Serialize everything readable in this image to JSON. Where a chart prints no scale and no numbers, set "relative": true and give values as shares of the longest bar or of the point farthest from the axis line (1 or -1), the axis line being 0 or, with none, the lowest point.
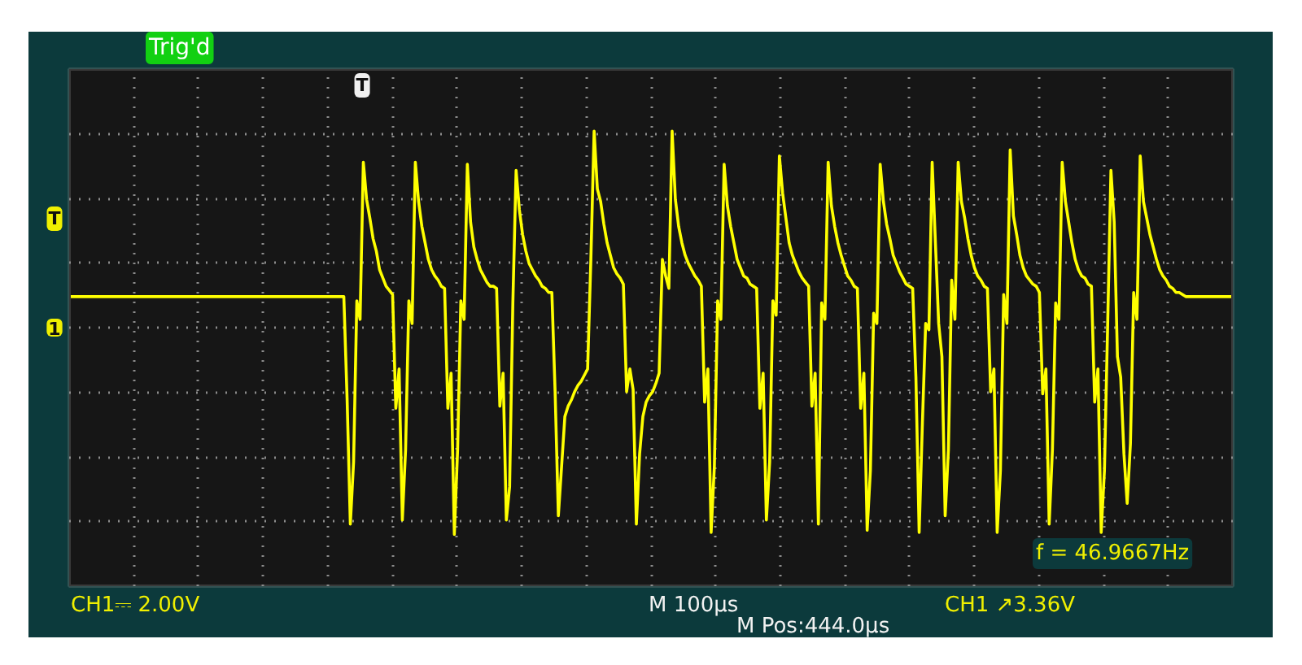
{
  "chart_data": {
    "type": "line",
    "relative": true,
    "grid": true,
    "categories": [
      null,
      null,
      null,
      null,
      null,
      null,
      null,
      null,
      null,
      null,
      null,
      null,
      null,
      null,
      null,
      null,
      null,
      null,
      null,
      null,
      null,
      null,
      null,
      null,
      null,
      null,
      null,
      null,
      null,
      null,
      null,
      null,
      null,
      null,
      null,
      null,
      null,
      null,
      null,
      null,
      null,
      null,
      null,
      null,
      null,
      null,
      null,
      null,
      null,
      null,
      null,
      null,
      null,
      null,
      null,
      null,
      null,
      null,
      null,
      null,
      null,
      null,
      null,
      null,
      null,
      null,
      null,
      null,
      null,
      null,
      null,
      null,
      null,
      null,
      null,
      null,
      null,
      null,
      null,
      null,
      null,
      null,
      null,
      null,
      null,
      null,
      null,
      null,
      null,
      null,
      null,
      null,
      null,
      null,
      null,
      null,
      null,
      null,
      null,
      null,
      null,
      null,
      null,
      null,
      null,
      null,
      null,
      null,
      null,
      null,
      null,
      null,
      null,
      null,
      null,
      null,
      null,
      null,
      null,
      null,
      null,
      null,
      null,
      null,
      null,
      null,
      null,
      null,
      null,
      null,
      null,
      null,
      null,
      null,
      null,
      null,
      null,
      null,
      null,
      null,
      null,
      null,
      null,
      null,
      null,
      null,
      null,
      null,
      null,
      null,
      null,
      null,
      null,
      null,
      null,
      null,
      null,
      null,
      null,
      null,
      null,
      null,
      null,
      null,
      null,
      null,
      null,
      null,
      null,
      null,
      null,
      null,
      null,
      null,
      null,
      null,
      null,
      null,
      null,
      null,
      null,
      null,
      null,
      null,
      null,
      null,
      null,
      null,
      null,
      null,
      null,
      null,
      null,
      null,
      null,
      null,
      null,
      null,
      null,
      null,
      null,
      null,
      null,
      null,
      null,
      null,
      null,
      null,
      null,
      null,
      null,
      null,
      null,
      null,
      null,
      null,
      null,
      null,
      null,
      null,
      null,
      null,
      null,
      null,
      null,
      null,
      null,
      null,
      null,
      null,
      null,
      null,
      null,
      null,
      null,
      null,
      null,
      null,
      null,
      null,
      null,
      null,
      null,
      null,
      null,
      null,
      null,
      null,
      null,
      null,
      null,
      null,
      null,
      null,
      null,
      null,
      null,
      null,
      null,
      null,
      null,
      null,
      null,
      null,
      null,
      null,
      null,
      null,
      null,
      null,
      null,
      null,
      null,
      null,
      null,
      null,
      null,
      null,
      null,
      null,
      null,
      null,
      null,
      null,
      null,
      null,
      null,
      null,
      null,
      null,
      null,
      null,
      null,
      null,
      null,
      null,
      null,
      null,
      null,
      null,
      null,
      null,
      null,
      null,
      null,
      null,
      null,
      null,
      null,
      null,
      null,
      null,
      null,
      null,
      null,
      null,
      null,
      null,
      null,
      null,
      null,
      null,
      null,
      null,
      null,
      null,
      null,
      null,
      null,
      null,
      null,
      null,
      null,
      null,
      null,
      null,
      null,
      null,
      null,
      null,
      null,
      null,
      null,
      null,
      null,
      null,
      null,
      null,
      null,
      null,
      null,
      null,
      null,
      null,
      null,
      null,
      null,
      null
    ],
    "series": [
      {
        "color": "#ffff00",
        "values": [
          0.15,
          0.15,
          0.15,
          0.15,
          0.15,
          0.15,
          0.15,
          0.15,
          0.15,
          0.15,
          0.15,
          0.15,
          0.15,
          0.15,
          0.15,
          0.15,
          0.15,
          0.15,
          0.15,
          0.15,
          0.15,
          0.15,
          0.15,
          0.15,
          0.15,
          0.15,
          0.15,
          0.15,
          0.15,
          0.15,
          0.15,
          0.15,
          0.15,
          0.15,
          0.15,
          0.15,
          0.15,
          0.15,
          0.15,
          0.15,
          0.15,
          0.15,
          0.15,
          0.15,
          0.15,
          0.15,
          0.15,
          0.15,
          0.15,
          0.15,
          0.15,
          0.15,
          0.15,
          0.15,
          0.15,
          0.15,
          0.15,
          0.15,
          0.15,
          0.15,
          0.15,
          0.15,
          0.15,
          0.15,
          0.15,
          0.15,
          0.15,
          0.15,
          0.15,
          0.15,
          0.15,
          0.15,
          0.15,
          0.15,
          0.15,
          0.15,
          0.15,
          0.15,
          0.15,
          0.15,
          0.15,
          0.15,
          0.15,
          0.15,
          0.15,
          -0.34,
          -0.95,
          -0.65,
          0.13,
          0.04,
          0.8,
          0.62,
          0.53,
          0.43,
          0.37,
          0.28,
          0.24,
          0.2,
          0.18,
          0.16,
          -0.39,
          -0.2,
          -0.93,
          -0.59,
          0.13,
          0.02,
          0.8,
          0.61,
          0.49,
          0.41,
          0.33,
          0.28,
          0.25,
          0.23,
          0.2,
          0.19,
          -0.39,
          -0.22,
          -1.0,
          -0.59,
          0.13,
          0.04,
          0.79,
          0.51,
          0.39,
          0.33,
          0.28,
          0.25,
          0.22,
          0.2,
          0.2,
          0.19,
          -0.38,
          -0.22,
          -0.93,
          -0.77,
          0.12,
          0.76,
          0.57,
          0.45,
          0.37,
          0.31,
          0.28,
          0.25,
          0.23,
          0.2,
          0.19,
          0.17,
          0.17,
          -0.31,
          -0.91,
          -0.67,
          -0.43,
          -0.38,
          -0.35,
          -0.31,
          -0.28,
          -0.26,
          -0.23,
          -0.2,
          0.33,
          0.95,
          0.67,
          0.61,
          0.5,
          0.41,
          0.35,
          0.29,
          0.26,
          0.24,
          0.21,
          -0.31,
          -0.2,
          -0.3,
          -0.95,
          -0.61,
          -0.43,
          -0.36,
          -0.33,
          -0.31,
          -0.27,
          -0.22,
          0.33,
          0.25,
          0.19,
          0.95,
          0.62,
          0.49,
          0.41,
          0.35,
          0.31,
          0.28,
          0.25,
          0.23,
          0.2,
          -0.36,
          -0.2,
          -0.99,
          -0.67,
          0.13,
          0.04,
          0.79,
          0.59,
          0.49,
          0.41,
          0.33,
          0.29,
          0.25,
          0.24,
          0.21,
          0.2,
          0.19,
          -0.39,
          -0.22,
          -0.93,
          -0.65,
          0.13,
          0.06,
          0.83,
          0.65,
          0.53,
          0.41,
          0.35,
          0.31,
          0.27,
          0.24,
          0.22,
          0.2,
          -0.38,
          -0.22,
          -0.95,
          0.12,
          0.04,
          0.8,
          0.59,
          0.49,
          0.41,
          0.35,
          0.3,
          0.25,
          0.23,
          0.2,
          0.19,
          -0.39,
          -0.22,
          -0.98,
          -0.69,
          0.07,
          0.02,
          0.79,
          0.61,
          0.5,
          0.43,
          0.35,
          0.31,
          0.27,
          0.24,
          0.21,
          0.2,
          0.19,
          -0.24,
          -0.99,
          -0.46,
          0.02,
          -0.01,
          0.8,
          0.41,
          0.02,
          -0.14,
          -0.91,
          -0.59,
          0.23,
          0.04,
          0.8,
          0.61,
          0.53,
          0.43,
          0.35,
          0.29,
          0.25,
          0.23,
          0.2,
          0.19,
          -0.31,
          -0.2,
          -0.99,
          -0.69,
          0.16,
          0.02,
          0.86,
          0.54,
          0.45,
          0.35,
          0.29,
          0.25,
          0.23,
          0.21,
          0.2,
          0.17,
          -0.32,
          -0.2,
          -0.95,
          -0.59,
          0.12,
          0.04,
          0.8,
          0.61,
          0.51,
          0.41,
          0.33,
          0.28,
          0.25,
          0.24,
          0.21,
          0.2,
          -0.36,
          -0.2,
          -0.99,
          -0.69,
          0.02,
          0.76,
          0.51,
          -0.14,
          -0.24,
          -0.61,
          -0.85,
          -0.56,
          0.17,
          0.04,
          0.83,
          0.61,
          0.53,
          0.45,
          0.39,
          0.33,
          0.28,
          0.25,
          0.23,
          0.2,
          0.19,
          0.17,
          0.17,
          0.16,
          0.15,
          0.15,
          0.15,
          0.15,
          0.15,
          0.15,
          0.15,
          0.15,
          0.15,
          0.15,
          0.15,
          0.15,
          0.15,
          0.15,
          0.15
        ]
      }
    ],
    "annotations": [
      "Trig'd",
      "CH1⎓ 2.00V",
      "M 100μs",
      "M Pos:444.0μs",
      "CH1 ↗3.36V",
      "f = 46.9667Hz",
      "T",
      "1",
      "T"
    ]
  }
}
